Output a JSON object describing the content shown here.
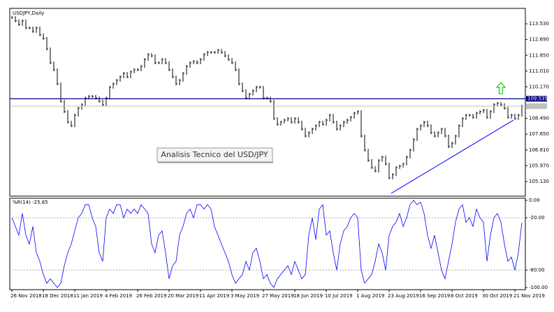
{
  "chart_data": [
    {
      "type": "ohlc",
      "title": "USDJPY,Daily",
      "color": "#000000",
      "x": [
        "26 Nov 2018",
        null,
        null,
        null,
        null,
        null,
        null,
        null,
        null,
        "18 Dec 2018",
        null,
        null,
        null,
        null,
        null,
        null,
        null,
        null,
        "11 Jan 2019",
        null,
        null,
        null,
        null,
        null,
        null,
        null,
        null,
        "4 Feb 2019",
        null,
        null,
        null,
        null,
        null,
        null,
        null,
        null,
        "26 Feb 2019",
        null,
        null,
        null,
        null,
        null,
        null,
        null,
        null,
        "20 Mar 2019",
        null,
        null,
        null,
        null,
        null,
        null,
        null,
        null,
        "11 Apr 2019",
        null,
        null,
        null,
        null,
        null,
        null,
        null,
        null,
        "3 May 2019",
        null,
        null,
        null,
        null,
        null,
        null,
        null,
        null,
        "27 May 2019",
        null,
        null,
        null,
        null,
        null,
        null,
        null,
        null,
        "18 Jun 2019",
        null,
        null,
        null,
        null,
        null,
        null,
        null,
        null,
        "10 Jul 2019",
        null,
        null,
        null,
        null,
        null,
        null,
        null,
        null,
        "1 Aug 2019",
        null,
        null,
        null,
        null,
        null,
        null,
        null,
        null,
        "23 Aug 2019",
        null,
        null,
        null,
        null,
        null,
        null,
        null,
        null,
        "16 Sep 2019",
        null,
        null,
        null,
        null,
        null,
        null,
        null,
        null,
        "8 Oct 2019",
        null,
        null,
        null,
        null,
        null,
        null,
        null,
        null,
        "30 Oct 2019",
        null,
        null,
        null,
        null,
        null,
        null,
        null,
        null,
        "21 Nov 2019",
        null,
        null
      ],
      "values": [
        113.86,
        113.68,
        113.49,
        113.68,
        113.31,
        113.31,
        113.12,
        113.31,
        112.94,
        112.75,
        112.19,
        111.45,
        111.08,
        110.33,
        109.4,
        108.85,
        108.29,
        108.1,
        108.66,
        109.03,
        109.22,
        109.58,
        109.66,
        109.66,
        109.58,
        109.4,
        109.22,
        109.58,
        110.15,
        110.33,
        110.52,
        110.7,
        110.89,
        110.7,
        110.97,
        111.08,
        111.08,
        111.26,
        111.63,
        111.89,
        111.82,
        111.45,
        111.45,
        111.63,
        111.45,
        111.08,
        110.7,
        110.33,
        110.52,
        110.89,
        111.26,
        111.45,
        111.52,
        111.45,
        111.63,
        111.89,
        112.01,
        112.01,
        112.01,
        112.12,
        112.01,
        111.82,
        111.63,
        111.45,
        111.08,
        110.33,
        109.96,
        109.58,
        109.78,
        109.96,
        110.15,
        110.15,
        109.58,
        109.58,
        109.4,
        108.48,
        108.18,
        108.29,
        108.4,
        108.48,
        108.29,
        108.48,
        108.29,
        107.92,
        107.55,
        107.73,
        107.92,
        108.1,
        108.29,
        108.18,
        108.4,
        108.66,
        108.29,
        107.92,
        108.1,
        108.29,
        108.4,
        108.55,
        108.77,
        108.85,
        107.55,
        106.8,
        106.25,
        105.87,
        105.69,
        106.25,
        106.43,
        106.06,
        105.32,
        105.5,
        105.87,
        105.95,
        106.06,
        106.43,
        106.8,
        107.36,
        107.92,
        108.1,
        108.29,
        108.1,
        107.73,
        107.55,
        107.73,
        107.92,
        107.55,
        106.99,
        107.17,
        107.55,
        108.1,
        108.48,
        108.66,
        108.66,
        108.55,
        108.77,
        108.85,
        108.92,
        108.55,
        108.85,
        109.22,
        109.29,
        109.22,
        109.03,
        108.55,
        108.66,
        108.48,
        108.66,
        109.14
      ],
      "ylim": [
        104.35,
        114.35
      ],
      "yticks": [
        {
          "value": 113.53,
          "label": "113.530"
        },
        {
          "value": 112.69,
          "label": "112.690"
        },
        {
          "value": 111.85,
          "label": "111.850"
        },
        {
          "value": 111.01,
          "label": "111.010"
        },
        {
          "value": 110.17,
          "label": "110.170"
        },
        {
          "value": 108.49,
          "label": "108.490"
        },
        {
          "value": 107.65,
          "label": "107.650"
        },
        {
          "value": 106.81,
          "label": "106.810"
        },
        {
          "value": 105.97,
          "label": "105.970"
        },
        {
          "value": 105.13,
          "label": "105.130"
        }
      ],
      "hline": {
        "value": 109.535,
        "label": "109.535",
        "color": "#000080"
      },
      "trendline": {
        "x": [
          108.6,
          143.6
        ],
        "y": [
          104.5,
          108.4
        ],
        "color": "#0000ff"
      },
      "arrow": {
        "x": 140,
        "y": 110.1,
        "color": "#00e000"
      },
      "annotation": "Analisis Tecnico del USD/JPY"
    },
    {
      "type": "line",
      "title": "%R(14) -25.85",
      "color": "#0000ff",
      "values": [
        -20,
        -30,
        -40,
        -15,
        -40,
        -50,
        -30,
        -60,
        -70,
        -85,
        -95,
        -90,
        -95,
        -100,
        -95,
        -75,
        -60,
        -50,
        -35,
        -20,
        -15,
        -5,
        -5,
        -20,
        -30,
        -60,
        -70,
        -20,
        -10,
        -15,
        -5,
        -5,
        -20,
        -10,
        -15,
        -10,
        -15,
        -5,
        -10,
        -15,
        -50,
        -60,
        -40,
        -35,
        -60,
        -90,
        -75,
        -70,
        -40,
        -30,
        -15,
        -10,
        -20,
        -5,
        -5,
        -10,
        -5,
        -10,
        -30,
        -40,
        -50,
        -60,
        -70,
        -85,
        -95,
        -90,
        -85,
        -70,
        -80,
        -60,
        -55,
        -70,
        -90,
        -85,
        -95,
        -100,
        -90,
        -85,
        -80,
        -75,
        -85,
        -70,
        -80,
        -90,
        -85,
        -40,
        -20,
        -45,
        -10,
        -5,
        -40,
        -35,
        -60,
        -80,
        -50,
        -35,
        -30,
        -20,
        -15,
        -20,
        -80,
        -95,
        -90,
        -85,
        -70,
        -50,
        -60,
        -80,
        -40,
        -30,
        -25,
        -15,
        -30,
        -20,
        -5,
        0,
        -5,
        -2,
        -15,
        -40,
        -55,
        -40,
        -60,
        -80,
        -90,
        -70,
        -50,
        -25,
        -10,
        -5,
        -25,
        -20,
        -30,
        -10,
        -20,
        -25,
        -70,
        -40,
        -20,
        -15,
        -25,
        -50,
        -70,
        -65,
        -80,
        -60,
        -25.85
      ],
      "ylim": [
        -100,
        0
      ],
      "yticks": [
        {
          "value": 0,
          "label": "0.00"
        },
        {
          "value": -20,
          "label": "-20.00"
        },
        {
          "value": -80,
          "label": "-80.00"
        },
        {
          "value": -100,
          "label": "-100.00"
        }
      ],
      "levels": [
        -20,
        -80
      ]
    }
  ]
}
